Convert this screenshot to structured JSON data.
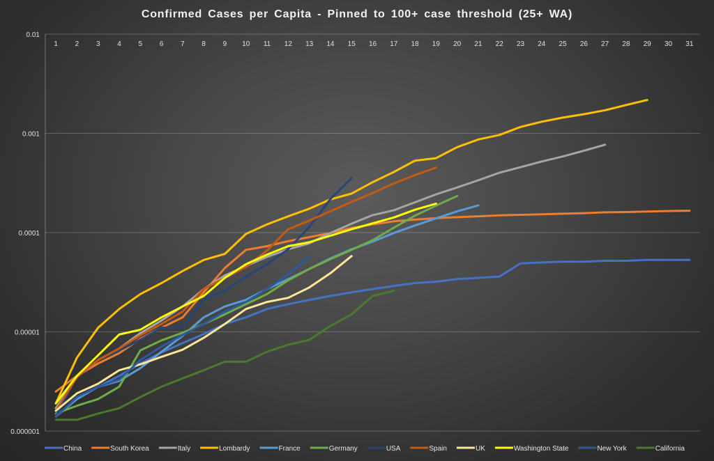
{
  "chart_data": {
    "type": "line",
    "title": "Confirmed Cases per Capita - Pinned to 100+ case threshold (25+ WA)",
    "xlabel": "",
    "ylabel": "",
    "y_scale": "log",
    "ylim": [
      1e-06,
      0.01
    ],
    "xlim": [
      1,
      31
    ],
    "y_tick_labels": [
      "0.01",
      "0.001",
      "0.0001",
      "0.00001",
      "0.000001"
    ],
    "x_tick_labels": [
      "1",
      "2",
      "3",
      "4",
      "5",
      "6",
      "7",
      "8",
      "9",
      "10",
      "11",
      "12",
      "13",
      "14",
      "15",
      "16",
      "17",
      "18",
      "19",
      "20",
      "21",
      "22",
      "23",
      "24",
      "25",
      "26",
      "27",
      "28",
      "29",
      "30",
      "31"
    ],
    "x_axis_position": "top",
    "grid": true,
    "legend_position": "bottom",
    "series": [
      {
        "name": "China",
        "color": "#4472c4",
        "x": [
          1,
          2,
          3,
          4,
          5,
          6,
          7,
          8,
          9,
          10,
          11,
          12,
          13,
          14,
          15,
          16,
          17,
          18,
          19,
          20,
          21,
          22,
          23,
          24,
          25,
          26,
          27,
          28,
          29,
          30,
          31
        ],
        "values": [
          1.4e-06,
          2.2e-06,
          2.8e-06,
          3.6e-06,
          4.8e-06,
          6.2e-06,
          7.7e-06,
          9.5e-06,
          1.2e-05,
          1.4e-05,
          1.7e-05,
          1.9e-05,
          2.1e-05,
          2.3e-05,
          2.5e-05,
          2.7e-05,
          2.9e-05,
          3.1e-05,
          3.2e-05,
          3.4e-05,
          3.5e-05,
          3.6e-05,
          4.9e-05,
          5e-05,
          5.1e-05,
          5.1e-05,
          5.2e-05,
          5.2e-05,
          5.3e-05,
          5.3e-05,
          5.3e-05
        ]
      },
      {
        "name": "South Korea",
        "color": "#ed7d31",
        "x": [
          1,
          2,
          3,
          4,
          5,
          6,
          7,
          8,
          9,
          10,
          11,
          12,
          13,
          14,
          15,
          16,
          17,
          18,
          19,
          20,
          21,
          22,
          23,
          24,
          25,
          26,
          27,
          28,
          29,
          30,
          31
        ],
        "values": [
          2.5e-06,
          3.6e-06,
          4.8e-06,
          6.1e-06,
          8.5e-06,
          1.1e-05,
          1.4e-05,
          2.5e-05,
          4.4e-05,
          6.7e-05,
          7.3e-05,
          8.2e-05,
          9e-05,
          9.9e-05,
          0.000111,
          0.000121,
          0.00013,
          0.000135,
          0.00014,
          0.000143,
          0.000146,
          0.000149,
          0.000151,
          0.000153,
          0.000155,
          0.000157,
          0.00016,
          0.000161,
          0.000163,
          0.000165,
          0.000166
        ]
      },
      {
        "name": "Italy",
        "color": "#a5a5a5",
        "x": [
          1,
          2,
          3,
          4,
          5,
          6,
          7,
          8,
          9,
          10,
          11,
          12,
          13,
          14,
          15,
          16,
          17,
          18,
          19,
          20,
          21,
          22,
          23,
          24,
          25,
          26,
          27
        ],
        "values": [
          1.7e-06,
          3.5e-06,
          5.2e-06,
          6.8e-06,
          9.7e-06,
          1.3e-05,
          1.8e-05,
          2.7e-05,
          3.7e-05,
          4.6e-05,
          5.7e-05,
          6.8e-05,
          7.8e-05,
          9.9e-05,
          0.000123,
          0.00015,
          0.000168,
          0.000202,
          0.000243,
          0.000285,
          0.000337,
          0.000401,
          0.000456,
          0.000521,
          0.000585,
          0.000669,
          0.000768
        ]
      },
      {
        "name": "Lombardy",
        "color": "#ffc000",
        "x": [
          1,
          2,
          3,
          4,
          5,
          6,
          7,
          8,
          9,
          10,
          11,
          12,
          13,
          14,
          15,
          16,
          17,
          18,
          19,
          20,
          21,
          22,
          23,
          24,
          25,
          26,
          27,
          28,
          29
        ],
        "values": [
          1.9e-06,
          5.5e-06,
          1.1e-05,
          1.7e-05,
          2.4e-05,
          3.1e-05,
          4.1e-05,
          5.3e-05,
          6.1e-05,
          9.7e-05,
          0.000121,
          0.000146,
          0.000174,
          0.000216,
          0.000247,
          0.000322,
          0.000408,
          0.000531,
          0.000563,
          0.000726,
          0.000868,
          0.000963,
          0.00116,
          0.00131,
          0.00144,
          0.00156,
          0.00171,
          0.00193,
          0.00217
        ]
      },
      {
        "name": "France",
        "color": "#5b9bd5",
        "x": [
          1,
          2,
          3,
          4,
          5,
          6,
          7,
          8,
          9,
          10,
          11,
          12,
          13,
          14,
          15,
          16,
          17,
          18,
          19,
          20,
          21
        ],
        "values": [
          1.4e-06,
          2.1e-06,
          2.8e-06,
          3.2e-06,
          4.3e-06,
          6.3e-06,
          9.1e-06,
          1.4e-05,
          1.8e-05,
          2.1e-05,
          2.7e-05,
          3.4e-05,
          4.3e-05,
          5.5e-05,
          6.8e-05,
          8.1e-05,
          9.9e-05,
          0.000118,
          0.000139,
          0.000164,
          0.000188
        ]
      },
      {
        "name": "Germany",
        "color": "#70ad47",
        "x": [
          1,
          2,
          3,
          4,
          5,
          6,
          7,
          8,
          9,
          10,
          11,
          12,
          13,
          14,
          15,
          16,
          17,
          18,
          19,
          20
        ],
        "values": [
          1.5e-06,
          1.8e-06,
          2.1e-06,
          2.8e-06,
          6.5e-06,
          8.2e-06,
          9.8e-06,
          1.2e-05,
          1.5e-05,
          1.9e-05,
          2.4e-05,
          3.3e-05,
          4.3e-05,
          5.4e-05,
          6.7e-05,
          8.4e-05,
          0.000112,
          0.000148,
          0.000187,
          0.000234
        ]
      },
      {
        "name": "USA",
        "color": "#264478",
        "x": [
          1,
          2,
          3,
          4,
          5,
          6,
          7,
          8,
          9,
          10,
          11,
          12,
          13,
          14,
          15
        ],
        "values": [
          1.4e-06,
          3.6e-06,
          5.2e-06,
          6.5e-06,
          8.3e-06,
          1.1e-05,
          1.1e-05,
          2.1e-05,
          2.6e-05,
          3.6e-05,
          4.8e-05,
          6.8e-05,
          0.000114,
          0.000218,
          0.000355
        ]
      },
      {
        "name": "Spain",
        "color": "#c55a11",
        "x": [
          1,
          2,
          3,
          4,
          5,
          6,
          7,
          8,
          9,
          10,
          11,
          12,
          13,
          14,
          15,
          16,
          17,
          18,
          19,
          20
        ],
        "values": [
          1.6e-06,
          3.5e-06,
          5.2e-06,
          6.8e-06,
          9.2e-06,
          1.2e-05,
          1.6e-05,
          2.7e-05,
          3.5e-05,
          4.5e-05,
          6.6e-05,
          0.000108,
          0.000132,
          0.000164,
          0.000204,
          0.00025,
          0.000313,
          0.000379,
          0.000452,
          null
        ]
      },
      {
        "name": "UK",
        "color": "#ffe699",
        "x": [
          1,
          2,
          3,
          4,
          5,
          6,
          7,
          8,
          9,
          10,
          11,
          12,
          13,
          14,
          15
        ],
        "values": [
          1.6e-06,
          2.4e-06,
          3e-06,
          4.1e-06,
          4.7e-06,
          5.6e-06,
          6.6e-06,
          8.7e-06,
          1.2e-05,
          1.7e-05,
          2e-05,
          2.2e-05,
          2.8e-05,
          3.9e-05,
          5.8e-05
        ]
      },
      {
        "name": "Washington State",
        "color": "#ffff00",
        "x": [
          1,
          2,
          3,
          4,
          5,
          6,
          7,
          8,
          9,
          10,
          11,
          12,
          13,
          14,
          15,
          16,
          17,
          18,
          19
        ],
        "values": [
          1.9e-06,
          3.6e-06,
          5.8e-06,
          9.4e-06,
          1.05e-05,
          1.4e-05,
          1.8e-05,
          2.3e-05,
          3.5e-05,
          4.8e-05,
          6e-05,
          7.3e-05,
          8e-05,
          9.3e-05,
          0.000108,
          0.000124,
          0.000142,
          0.00017,
          0.000196
        ]
      },
      {
        "name": "New York",
        "color": "#2e5a9c",
        "x": [
          1,
          2,
          3,
          4,
          5,
          6,
          7,
          8,
          9,
          10,
          11,
          12,
          13
        ],
        "values": [
          1.4e-06,
          2.2e-06,
          2.8e-06,
          3.3e-06,
          5.2e-06,
          7.1e-06,
          9.3e-06,
          1.2e-05,
          1.6e-05,
          2e-05,
          2.7e-05,
          3.8e-05,
          5.7e-05
        ]
      },
      {
        "name": "California",
        "color": "#4a7a2c",
        "x": [
          1,
          2,
          3,
          4,
          5,
          6,
          7,
          8,
          9,
          10,
          11,
          12,
          13,
          14,
          15,
          16,
          17
        ],
        "values": [
          1.3e-06,
          1.3e-06,
          1.5e-06,
          1.7e-06,
          2.2e-06,
          2.8e-06,
          3.4e-06,
          4.1e-06,
          5e-06,
          5e-06,
          6.3e-06,
          7.4e-06,
          8.3e-06,
          1.15e-05,
          1.5e-05,
          2.3e-05,
          2.6e-05
        ]
      }
    ]
  }
}
